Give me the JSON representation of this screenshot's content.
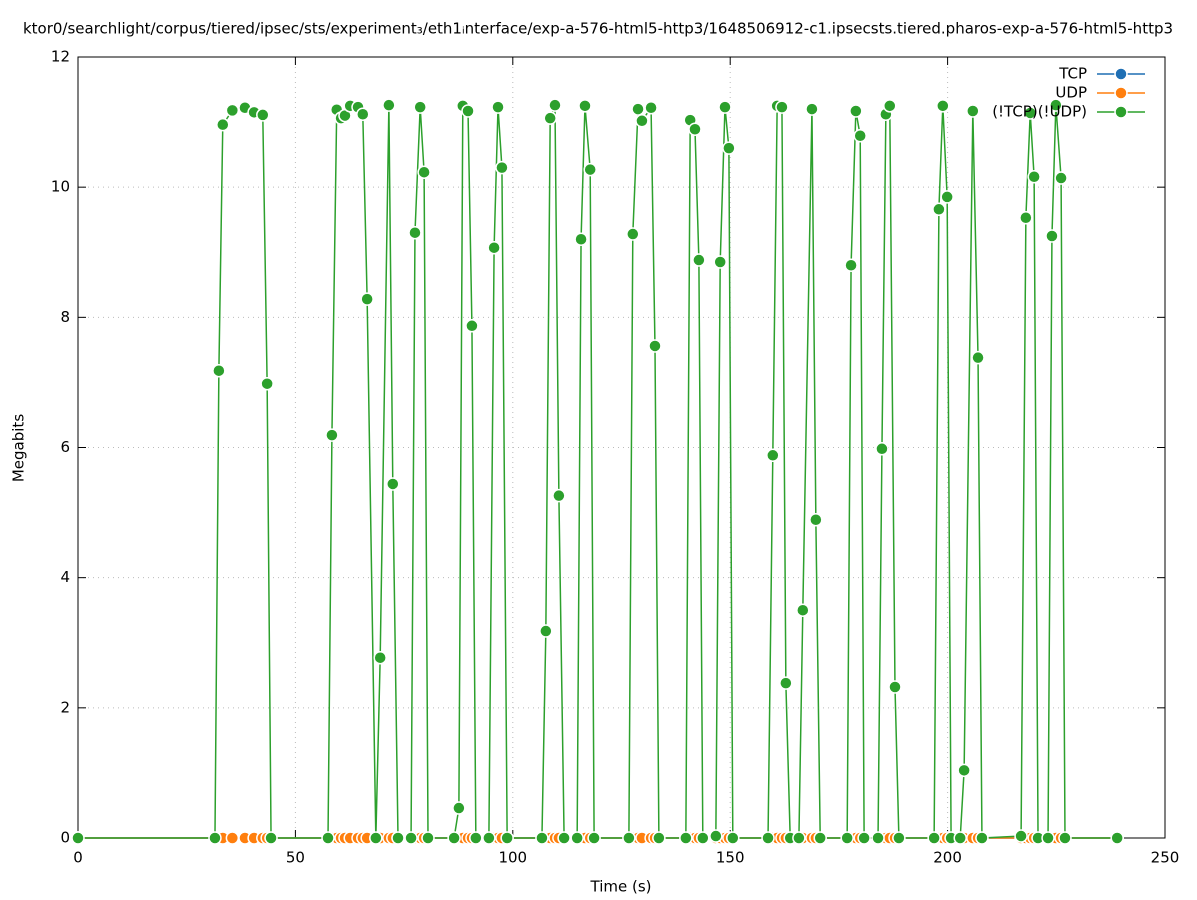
{
  "chart_data": {
    "type": "line",
    "title": "ktor0/searchlight/corpus/tiered/ipsec/sts/experiment₃/eth1ᵢnterface/exp-a-576-html5-http3/1648506912-c1.ipsecsts.tiered.pharos-exp-a-576-html5-http3",
    "x_label": "Time (s)",
    "y_label": "Megabits",
    "xlim": [
      0,
      250
    ],
    "xticks": [
      0,
      50,
      100,
      150,
      200,
      250
    ],
    "ylim": [
      0,
      12
    ],
    "yticks": [
      0,
      2,
      4,
      6,
      8,
      10,
      12
    ],
    "grid": true,
    "legend": "top-right",
    "x": [
      0,
      31.5,
      32.4,
      33.3,
      35.5,
      38.4,
      40.5,
      42.5,
      43.5,
      44.4,
      57.5,
      58.4,
      59.5,
      60.5,
      61.4,
      62.6,
      64.4,
      65.5,
      66.5,
      68.5,
      69.5,
      71.5,
      72.4,
      73.6,
      76.6,
      77.5,
      78.7,
      79.6,
      80.5,
      86.5,
      87.6,
      88.5,
      89.7,
      90.6,
      91.5,
      94.5,
      95.7,
      96.6,
      97.5,
      98.7,
      106.7,
      107.6,
      108.6,
      109.7,
      110.6,
      111.8,
      114.8,
      115.7,
      116.6,
      117.8,
      118.7,
      126.7,
      127.6,
      128.8,
      129.7,
      131.8,
      132.7,
      133.6,
      139.8,
      140.8,
      141.9,
      142.8,
      143.7,
      146.7,
      147.7,
      148.8,
      149.7,
      150.6,
      158.7,
      159.8,
      160.8,
      161.9,
      162.8,
      163.8,
      165.8,
      166.7,
      168.8,
      169.7,
      170.7,
      176.9,
      177.8,
      178.9,
      179.9,
      180.8,
      184,
      184.9,
      185.8,
      186.7,
      187.9,
      188.8,
      196.9,
      198,
      198.9,
      199.9,
      200.8,
      202.9,
      203.8,
      205.8,
      207,
      207.9,
      216.9,
      218,
      219,
      219.9,
      220.8,
      223.1,
      224,
      224.9,
      226.1,
      227,
      239
    ],
    "series": [
      {
        "name": "TCP",
        "color": "#1f6fb4",
        "values": [
          0,
          0,
          0,
          0,
          0,
          0,
          0,
          0,
          0,
          0,
          0,
          0,
          0,
          0,
          0,
          0,
          0,
          0,
          0,
          0,
          0,
          0,
          0,
          0,
          0,
          0,
          0,
          0,
          0,
          0,
          0,
          0,
          0,
          0,
          0,
          0,
          0,
          0,
          0,
          0,
          0,
          0,
          0,
          0,
          0,
          0,
          0,
          0,
          0,
          0,
          0,
          0,
          0,
          0,
          0,
          0,
          0,
          0,
          0,
          0,
          0,
          0,
          0,
          0,
          0,
          0,
          0,
          0,
          0,
          0,
          0,
          0,
          0,
          0,
          0,
          0,
          0,
          0,
          0,
          0,
          0,
          0,
          0,
          0,
          0,
          0,
          0,
          0,
          0,
          0,
          0,
          0,
          0,
          0,
          0,
          0,
          0,
          0,
          0,
          0,
          0,
          0,
          0,
          0,
          0,
          0,
          0,
          0,
          0,
          0,
          0
        ]
      },
      {
        "name": "UDP",
        "color": "#ff7f0e",
        "values": [
          0,
          0,
          0,
          0,
          0,
          0,
          0,
          0,
          0,
          0,
          0,
          0,
          0,
          0,
          0,
          0,
          0,
          0,
          0,
          0,
          0,
          0,
          0,
          0,
          0,
          0,
          0,
          0,
          0,
          0,
          0,
          0,
          0,
          0,
          0,
          0,
          0,
          0,
          0,
          0,
          0,
          0,
          0,
          0,
          0,
          0,
          0,
          0,
          0,
          0,
          0,
          0,
          0,
          0,
          0,
          0,
          0,
          0,
          0,
          0,
          0,
          0,
          0,
          0,
          0,
          0,
          0,
          0,
          0,
          0,
          0,
          0,
          0,
          0,
          0,
          0,
          0,
          0,
          0,
          0,
          0,
          0,
          0,
          0,
          0,
          0,
          0,
          0,
          0,
          0,
          0,
          0,
          0,
          0,
          0,
          0,
          0,
          0,
          0,
          0,
          0,
          0,
          0,
          0,
          0,
          0,
          0,
          0,
          0,
          0,
          0
        ]
      },
      {
        "name": "(!TCP)(!UDP)",
        "color": "#2ca02c",
        "values": [
          0,
          0,
          7.18,
          10.96,
          11.18,
          11.22,
          11.15,
          11.11,
          6.98,
          0,
          0,
          6.19,
          11.19,
          11.06,
          11.1,
          11.25,
          11.23,
          11.12,
          8.28,
          0,
          2.77,
          11.26,
          5.44,
          0,
          0,
          9.3,
          11.23,
          10.23,
          0,
          0,
          0.46,
          11.25,
          11.17,
          7.87,
          0,
          0,
          9.07,
          11.23,
          10.3,
          0,
          0,
          3.18,
          11.06,
          11.26,
          5.26,
          0,
          0,
          9.2,
          11.25,
          10.27,
          0,
          0,
          9.28,
          11.2,
          11.02,
          11.22,
          7.56,
          0,
          0,
          11.03,
          10.89,
          8.88,
          0,
          0.03,
          8.85,
          11.23,
          10.6,
          0,
          0,
          5.88,
          11.25,
          11.23,
          2.38,
          0,
          0,
          3.5,
          11.2,
          4.89,
          0,
          0,
          8.8,
          11.17,
          10.79,
          0,
          0,
          5.98,
          11.12,
          11.25,
          2.32,
          0,
          0,
          9.66,
          11.25,
          9.85,
          0,
          0,
          1.04,
          11.17,
          7.38,
          0,
          0.03,
          9.53,
          11.14,
          10.16,
          0,
          0,
          9.25,
          11.26,
          10.14,
          0,
          0
        ]
      }
    ]
  }
}
